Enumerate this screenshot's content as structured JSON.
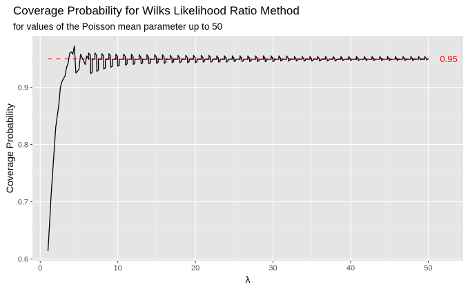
{
  "chart_data": {
    "type": "line",
    "title": "Coverage Probability for Wilks Likelihood Ratio Method",
    "subtitle": "for values of the Poisson mean parameter up to 50",
    "xlabel": "λ",
    "ylabel": "Coverage Probability",
    "xlim": [
      -1,
      54.5
    ],
    "ylim": [
      0.597,
      0.99
    ],
    "x_ticks": [
      0,
      10,
      20,
      30,
      40,
      50
    ],
    "y_ticks": [
      0.6,
      0.7,
      0.8,
      0.9
    ],
    "x_tick_labels": [
      "0",
      "10",
      "20",
      "30",
      "40",
      "50"
    ],
    "y_tick_labels": [
      "0.6",
      "0.7",
      "0.8",
      "0.9"
    ],
    "grid": true,
    "background_color": "#e5e5e5",
    "line_color": "#000000",
    "reference_line": {
      "y": 0.95,
      "style": "dashed",
      "color": "#ff0000",
      "label": "0.95",
      "x_start": 1,
      "x_end": 50
    },
    "series": [
      {
        "color": "#000000",
        "x": [
          1.0,
          1.2,
          1.4,
          1.6,
          1.8,
          2.0,
          2.2,
          2.4,
          2.6,
          2.8,
          3.0,
          3.2,
          3.4,
          3.6,
          3.8,
          4.0,
          4.2,
          4.4,
          4.6,
          4.8,
          5.0,
          5.2,
          5.4,
          5.6,
          5.8,
          6.0
        ],
        "values": [
          0.614,
          0.66,
          0.71,
          0.75,
          0.79,
          0.83,
          0.85,
          0.87,
          0.9,
          0.91,
          0.915,
          0.92,
          0.935,
          0.942,
          0.96,
          0.962,
          0.958,
          0.972,
          0.925,
          0.928,
          0.932,
          0.958,
          0.952,
          0.946,
          0.94,
          0.955
        ],
        "pattern_after": {
          "x_from": 6.0,
          "x_to": 50.0,
          "teeth": [
            6.5,
            7.3,
            8.2,
            9.1,
            10.0,
            11.0,
            12.0,
            13.0,
            14.0,
            15.0,
            16.0,
            17.0,
            18.0,
            19.0,
            20.0,
            21.0,
            22.0,
            23.0,
            24.0,
            25.0,
            26.0,
            27.0,
            28.0,
            29.0,
            30.0,
            31.0,
            32.0,
            33.0,
            34.0,
            35.0,
            36.0,
            37.0,
            38.0,
            39.0,
            40.0,
            41.0,
            42.0,
            43.0,
            44.0,
            45.0,
            46.0,
            47.0,
            48.0,
            49.0,
            49.8
          ],
          "dip_low": [
            0.924,
            0.928,
            0.932,
            0.935,
            0.937,
            0.939,
            0.94,
            0.941,
            0.941,
            0.942,
            0.942,
            0.943,
            0.943,
            0.943,
            0.943,
            0.944,
            0.944,
            0.944,
            0.944,
            0.945,
            0.945,
            0.945,
            0.945,
            0.945,
            0.945,
            0.946,
            0.946,
            0.946,
            0.946,
            0.946,
            0.946,
            0.946,
            0.946,
            0.947,
            0.947,
            0.947,
            0.947,
            0.947,
            0.947,
            0.947,
            0.947,
            0.947,
            0.947,
            0.948,
            0.948
          ],
          "peak_high": [
            0.96,
            0.96,
            0.959,
            0.959,
            0.958,
            0.958,
            0.958,
            0.957,
            0.957,
            0.957,
            0.957,
            0.956,
            0.956,
            0.956,
            0.956,
            0.956,
            0.956,
            0.955,
            0.955,
            0.955,
            0.955,
            0.955,
            0.955,
            0.955,
            0.955,
            0.955,
            0.955,
            0.954,
            0.954,
            0.954,
            0.954,
            0.954,
            0.954,
            0.954,
            0.954,
            0.954,
            0.954,
            0.954,
            0.954,
            0.954,
            0.954,
            0.954,
            0.954,
            0.954,
            0.954
          ],
          "base": 0.949
        }
      }
    ]
  }
}
